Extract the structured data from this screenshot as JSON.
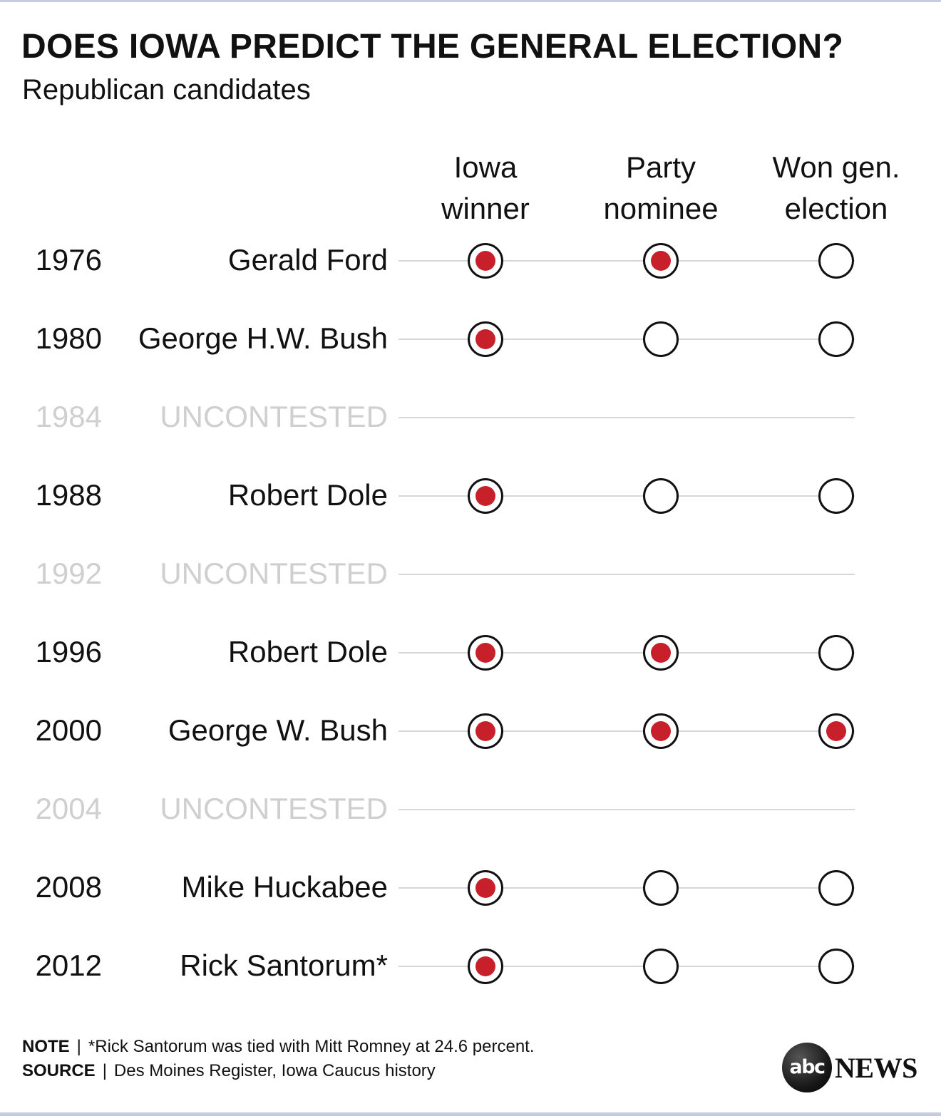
{
  "title": "DOES IOWA PREDICT THE GENERAL ELECTION?",
  "subtitle": "Republican candidates",
  "columns": [
    {
      "line1": "Iowa",
      "line2": "winner"
    },
    {
      "line1": "Party",
      "line2": "nominee"
    },
    {
      "line1": "Won gen.",
      "line2": "election"
    }
  ],
  "colors": {
    "filled": "#c8202a",
    "outline": "#111111",
    "muted": "#cfcfcf",
    "rule": "#d7d7d7"
  },
  "chart_data": {
    "type": "table",
    "rows": [
      {
        "year": "1976",
        "candidate": "Gerald Ford",
        "iowa_winner": true,
        "party_nominee": true,
        "won_general": false
      },
      {
        "year": "1980",
        "candidate": "George H.W. Bush",
        "iowa_winner": true,
        "party_nominee": false,
        "won_general": false
      },
      {
        "year": "1984",
        "candidate": "UNCONTESTED",
        "uncontested": true
      },
      {
        "year": "1988",
        "candidate": "Robert Dole",
        "iowa_winner": true,
        "party_nominee": false,
        "won_general": false
      },
      {
        "year": "1992",
        "candidate": "UNCONTESTED",
        "uncontested": true
      },
      {
        "year": "1996",
        "candidate": "Robert Dole",
        "iowa_winner": true,
        "party_nominee": true,
        "won_general": false
      },
      {
        "year": "2000",
        "candidate": "George W. Bush",
        "iowa_winner": true,
        "party_nominee": true,
        "won_general": true
      },
      {
        "year": "2004",
        "candidate": "UNCONTESTED",
        "uncontested": true
      },
      {
        "year": "2008",
        "candidate": "Mike Huckabee",
        "iowa_winner": true,
        "party_nominee": false,
        "won_general": false
      },
      {
        "year": "2012",
        "candidate": "Rick Santorum*",
        "iowa_winner": true,
        "party_nominee": false,
        "won_general": false
      }
    ]
  },
  "footer": {
    "note_label": "NOTE",
    "note_text": "*Rick Santorum was tied with Mitt Romney at 24.6 percent.",
    "source_label": "SOURCE",
    "source_text": "Des Moines Register, Iowa Caucus history",
    "separator": "|"
  },
  "logo": {
    "mark": "abc",
    "wordmark": "NEWS"
  }
}
